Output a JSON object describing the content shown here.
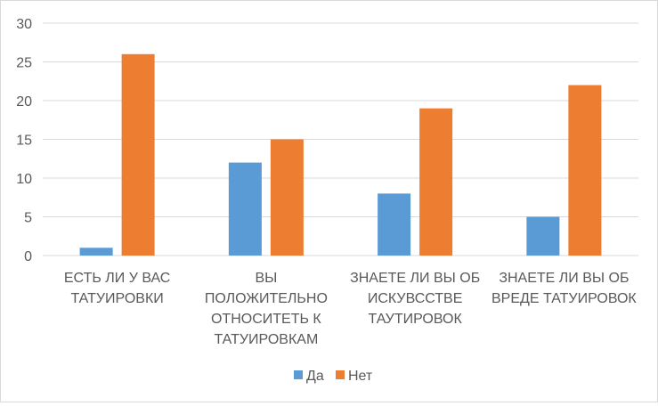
{
  "chart_data": {
    "type": "bar",
    "title": "",
    "xlabel": "",
    "ylabel": "",
    "categories": [
      [
        "ЕСТЬ ЛИ У ВАС",
        "ТАТУИРОВКИ"
      ],
      [
        "ВЫ",
        "ПОЛОЖИТЕЛЬНО",
        "ОТНОСИТЕТЬ К",
        "ТАТУИРОВКАМ"
      ],
      [
        "ЗНАЕТЕ ЛИ ВЫ ОБ",
        "ИСКУВССТВЕ",
        "ТАУТИРОВОК"
      ],
      [
        "ЗНАЕТЕ ЛИ ВЫ ОБ",
        "ВРЕДЕ ТАТУИРОВОК"
      ]
    ],
    "series": [
      {
        "name": "Да",
        "color": "#5b9bd5",
        "values": [
          1,
          12,
          8,
          5
        ]
      },
      {
        "name": "Нет",
        "color": "#ed7d31",
        "values": [
          26,
          15,
          19,
          22
        ]
      }
    ],
    "ylim": [
      0,
      30
    ],
    "yticks": [
      0,
      5,
      10,
      15,
      20,
      25,
      30
    ],
    "grid": true,
    "legend_position": "bottom"
  }
}
